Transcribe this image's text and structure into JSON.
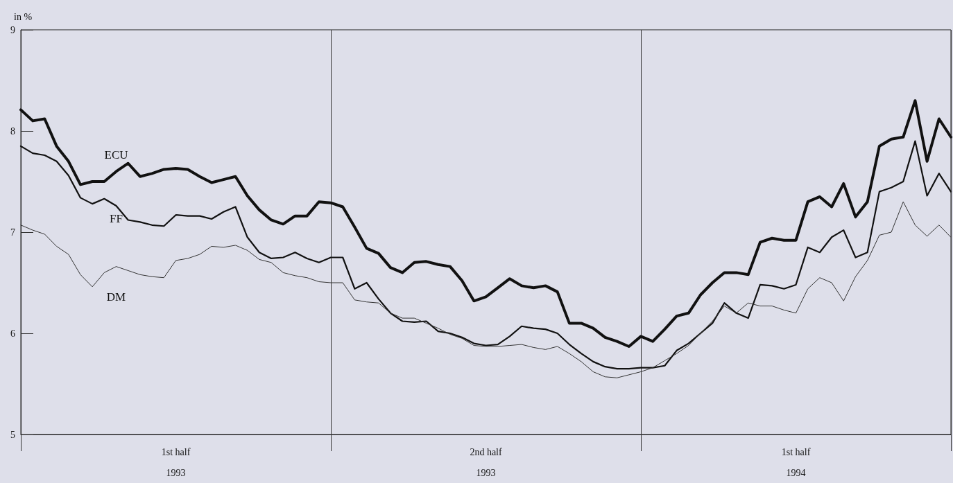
{
  "chart_data": {
    "type": "line",
    "ylabel": "in %",
    "legend": false,
    "grid": "x",
    "marker": "none",
    "line_style": "solid",
    "ylim": [
      5,
      9
    ],
    "yticks": [
      5,
      6,
      7,
      8,
      9
    ],
    "categories": [
      null,
      null,
      null,
      null,
      null,
      null,
      null,
      null,
      null,
      null,
      null,
      null,
      null,
      "1st half\n1993",
      null,
      null,
      null,
      null,
      null,
      null,
      null,
      null,
      null,
      null,
      null,
      null,
      null,
      null,
      null,
      null,
      null,
      null,
      null,
      null,
      null,
      null,
      null,
      null,
      null,
      "2nd half\n1993",
      null,
      null,
      null,
      null,
      null,
      null,
      null,
      null,
      null,
      null,
      null,
      null,
      null,
      null,
      null,
      null,
      null,
      null,
      null,
      null,
      null,
      null,
      null,
      null,
      null,
      "1st half\n1994",
      null,
      null,
      null,
      null,
      null,
      null,
      null,
      null,
      null,
      null,
      null,
      null,
      null
    ],
    "series": [
      {
        "name": "ECU",
        "color": "#111111",
        "values": [
          8.21,
          8.1,
          8.12,
          7.85,
          7.7,
          7.47,
          7.5,
          7.5,
          7.6,
          7.68,
          7.55,
          7.58,
          7.62,
          7.63,
          7.62,
          7.55,
          7.49,
          7.52,
          7.55,
          7.36,
          7.22,
          7.12,
          7.08,
          7.16,
          7.16,
          7.3,
          7.29,
          7.25,
          7.05,
          6.84,
          6.79,
          6.65,
          6.6,
          6.7,
          6.71,
          6.68,
          6.66,
          6.52,
          6.32,
          6.36,
          6.45,
          6.54,
          6.47,
          6.45,
          6.47,
          6.41,
          6.1,
          6.1,
          6.05,
          5.96,
          5.92,
          5.87,
          5.97,
          5.92,
          6.04,
          6.17,
          6.2,
          6.38,
          6.5,
          6.6,
          6.6,
          6.58,
          6.9,
          6.94,
          6.92,
          6.92,
          7.3,
          7.35,
          7.25,
          7.48,
          7.15,
          7.3,
          7.85,
          7.92,
          7.94,
          8.3,
          7.7,
          8.12,
          7.94
        ]
      },
      {
        "name": "FF",
        "color": "#111111",
        "values": [
          7.85,
          7.78,
          7.76,
          7.7,
          7.56,
          7.34,
          7.28,
          7.33,
          7.26,
          7.12,
          7.1,
          7.07,
          7.06,
          7.17,
          7.16,
          7.16,
          7.13,
          7.2,
          7.25,
          6.95,
          6.8,
          6.74,
          6.75,
          6.8,
          6.74,
          6.7,
          6.75,
          6.75,
          6.44,
          6.5,
          6.34,
          6.2,
          6.12,
          6.11,
          6.12,
          6.02,
          6.0,
          5.96,
          5.9,
          5.88,
          5.89,
          5.97,
          6.07,
          6.05,
          6.04,
          6.0,
          5.89,
          5.8,
          5.72,
          5.67,
          5.65,
          5.65,
          5.66,
          5.66,
          5.68,
          5.83,
          5.9,
          6.0,
          6.1,
          6.3,
          6.2,
          6.15,
          6.48,
          6.47,
          6.44,
          6.48,
          6.85,
          6.8,
          6.95,
          7.02,
          6.75,
          6.8,
          7.4,
          7.44,
          7.5,
          7.9,
          7.36,
          7.58,
          7.4
        ]
      },
      {
        "name": "DM",
        "color": "#333333",
        "values": [
          7.07,
          7.02,
          6.98,
          6.86,
          6.78,
          6.58,
          6.46,
          6.6,
          6.66,
          6.62,
          6.58,
          6.56,
          6.55,
          6.72,
          6.74,
          6.78,
          6.86,
          6.85,
          6.87,
          6.82,
          6.73,
          6.7,
          6.6,
          6.57,
          6.55,
          6.51,
          6.5,
          6.5,
          6.33,
          6.31,
          6.3,
          6.2,
          6.15,
          6.15,
          6.1,
          6.05,
          5.99,
          5.95,
          5.88,
          5.87,
          5.87,
          5.88,
          5.89,
          5.86,
          5.84,
          5.87,
          5.8,
          5.72,
          5.62,
          5.57,
          5.56,
          5.59,
          5.62,
          5.66,
          5.73,
          5.8,
          5.88,
          6.0,
          6.12,
          6.27,
          6.2,
          6.3,
          6.27,
          6.27,
          6.23,
          6.2,
          6.44,
          6.55,
          6.5,
          6.32,
          6.56,
          6.72,
          6.97,
          7.0,
          7.3,
          7.07,
          6.96,
          7.07,
          6.95
        ]
      }
    ]
  }
}
